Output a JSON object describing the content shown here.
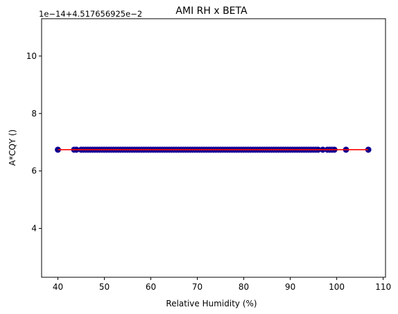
{
  "chart_data": {
    "type": "scatter",
    "title": "AMI RH x BETA",
    "xlabel": "Relative Humidity (%)",
    "ylabel": "A*CQY ()",
    "offset_text": "1e−14+4.517656925e−2",
    "xlim": [
      36.5,
      110.5
    ],
    "ylim": [
      2.3,
      11.3
    ],
    "x_ticks": [
      40,
      50,
      60,
      70,
      80,
      90,
      100,
      110
    ],
    "y_ticks": [
      4,
      6,
      8,
      10
    ],
    "grid": false,
    "series": [
      {
        "kind": "points",
        "color": "#00008b",
        "y_value": 6.74,
        "x_range_dense": [
          45,
          95
        ],
        "x_sparse": [
          40,
          43.5,
          44,
          95.5,
          96,
          97,
          98,
          98.5,
          99,
          99.5,
          102,
          106.8
        ]
      },
      {
        "kind": "fit-line",
        "color": "#ff0000",
        "x": [
          40,
          106.8
        ],
        "y": [
          6.74,
          6.74
        ]
      }
    ]
  }
}
